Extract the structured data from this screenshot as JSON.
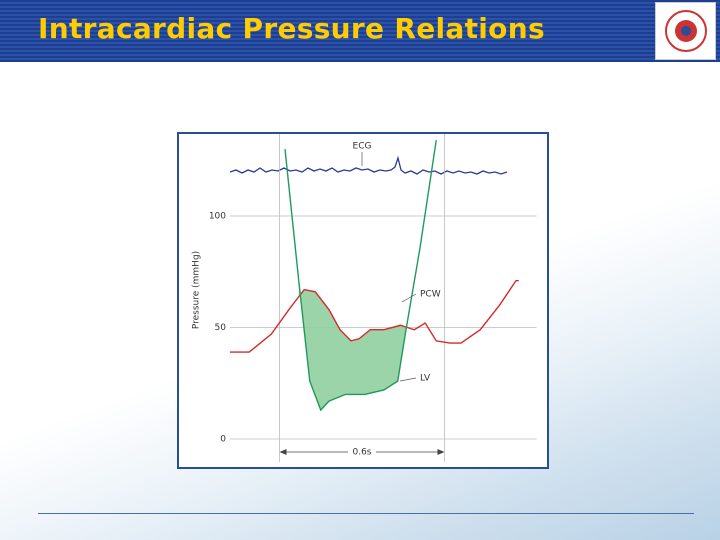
{
  "header": {
    "title": "Intracardiac Pressure Relations"
  },
  "chart_data": {
    "type": "line",
    "y_label": "Pressure (mmHg)",
    "ylim": [
      0,
      100
    ],
    "yticks": [
      0,
      50,
      100
    ],
    "xlim": [
      0,
      1.1
    ],
    "grid": true,
    "fill_color": "#8fcf9f",
    "series": [
      {
        "name": "PCW",
        "color": "#d42a2a",
        "x": [
          0,
          0.07,
          0.15,
          0.22,
          0.27,
          0.31,
          0.36,
          0.4,
          0.44,
          0.47,
          0.51,
          0.56,
          0.62,
          0.67,
          0.71,
          0.75,
          0.8,
          0.84,
          0.91,
          0.98,
          1.04,
          1.05
        ],
        "values": [
          39,
          39,
          47,
          59,
          67,
          66,
          58,
          49,
          44,
          45,
          49,
          49,
          51,
          49,
          52,
          44,
          43,
          43,
          49,
          60,
          71,
          71
        ]
      },
      {
        "name": "LV",
        "color": "#1f9a5a",
        "x": [
          0.2,
          0.25,
          0.29,
          0.33,
          0.36,
          0.42,
          0.49,
          0.56,
          0.61,
          0.64,
          0.69,
          0.75
        ],
        "values": [
          130,
          71,
          26,
          13,
          17,
          20,
          20,
          22,
          26,
          49,
          85,
          134
        ]
      }
    ],
    "annotations": {
      "ecg": "ECG",
      "interval": {
        "label": "0.6s",
        "x": [
          0.18,
          0.78
        ]
      }
    }
  }
}
